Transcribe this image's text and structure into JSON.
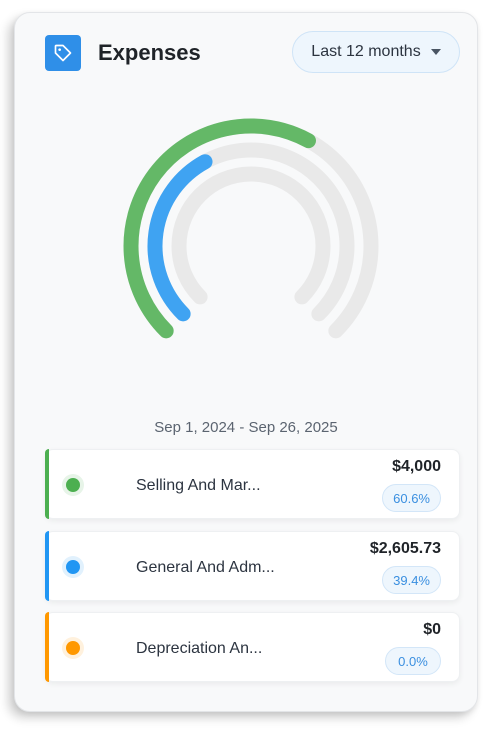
{
  "header": {
    "title": "Expenses",
    "icon": "tag-icon",
    "range_label": "Last 12 months"
  },
  "gauge": {
    "track_color": "#e9e9e9",
    "series": [
      {
        "percent": 60.6,
        "color": "#4caf50"
      },
      {
        "percent": 39.4,
        "color": "#2196f3"
      },
      {
        "percent": 0.0,
        "color": "#ff9800"
      }
    ]
  },
  "date_range": "Sep 1, 2024 - Sep 26, 2025",
  "items": [
    {
      "label": "Selling And Mar...",
      "amount": "$4,000",
      "percent": "60.6%",
      "color": "#4caf50"
    },
    {
      "label": "General And Adm...",
      "amount": "$2,605.73",
      "percent": "39.4%",
      "color": "#2196f3"
    },
    {
      "label": "Depreciation An...",
      "amount": "$0",
      "percent": "0.0%",
      "color": "#ff9800"
    }
  ]
}
